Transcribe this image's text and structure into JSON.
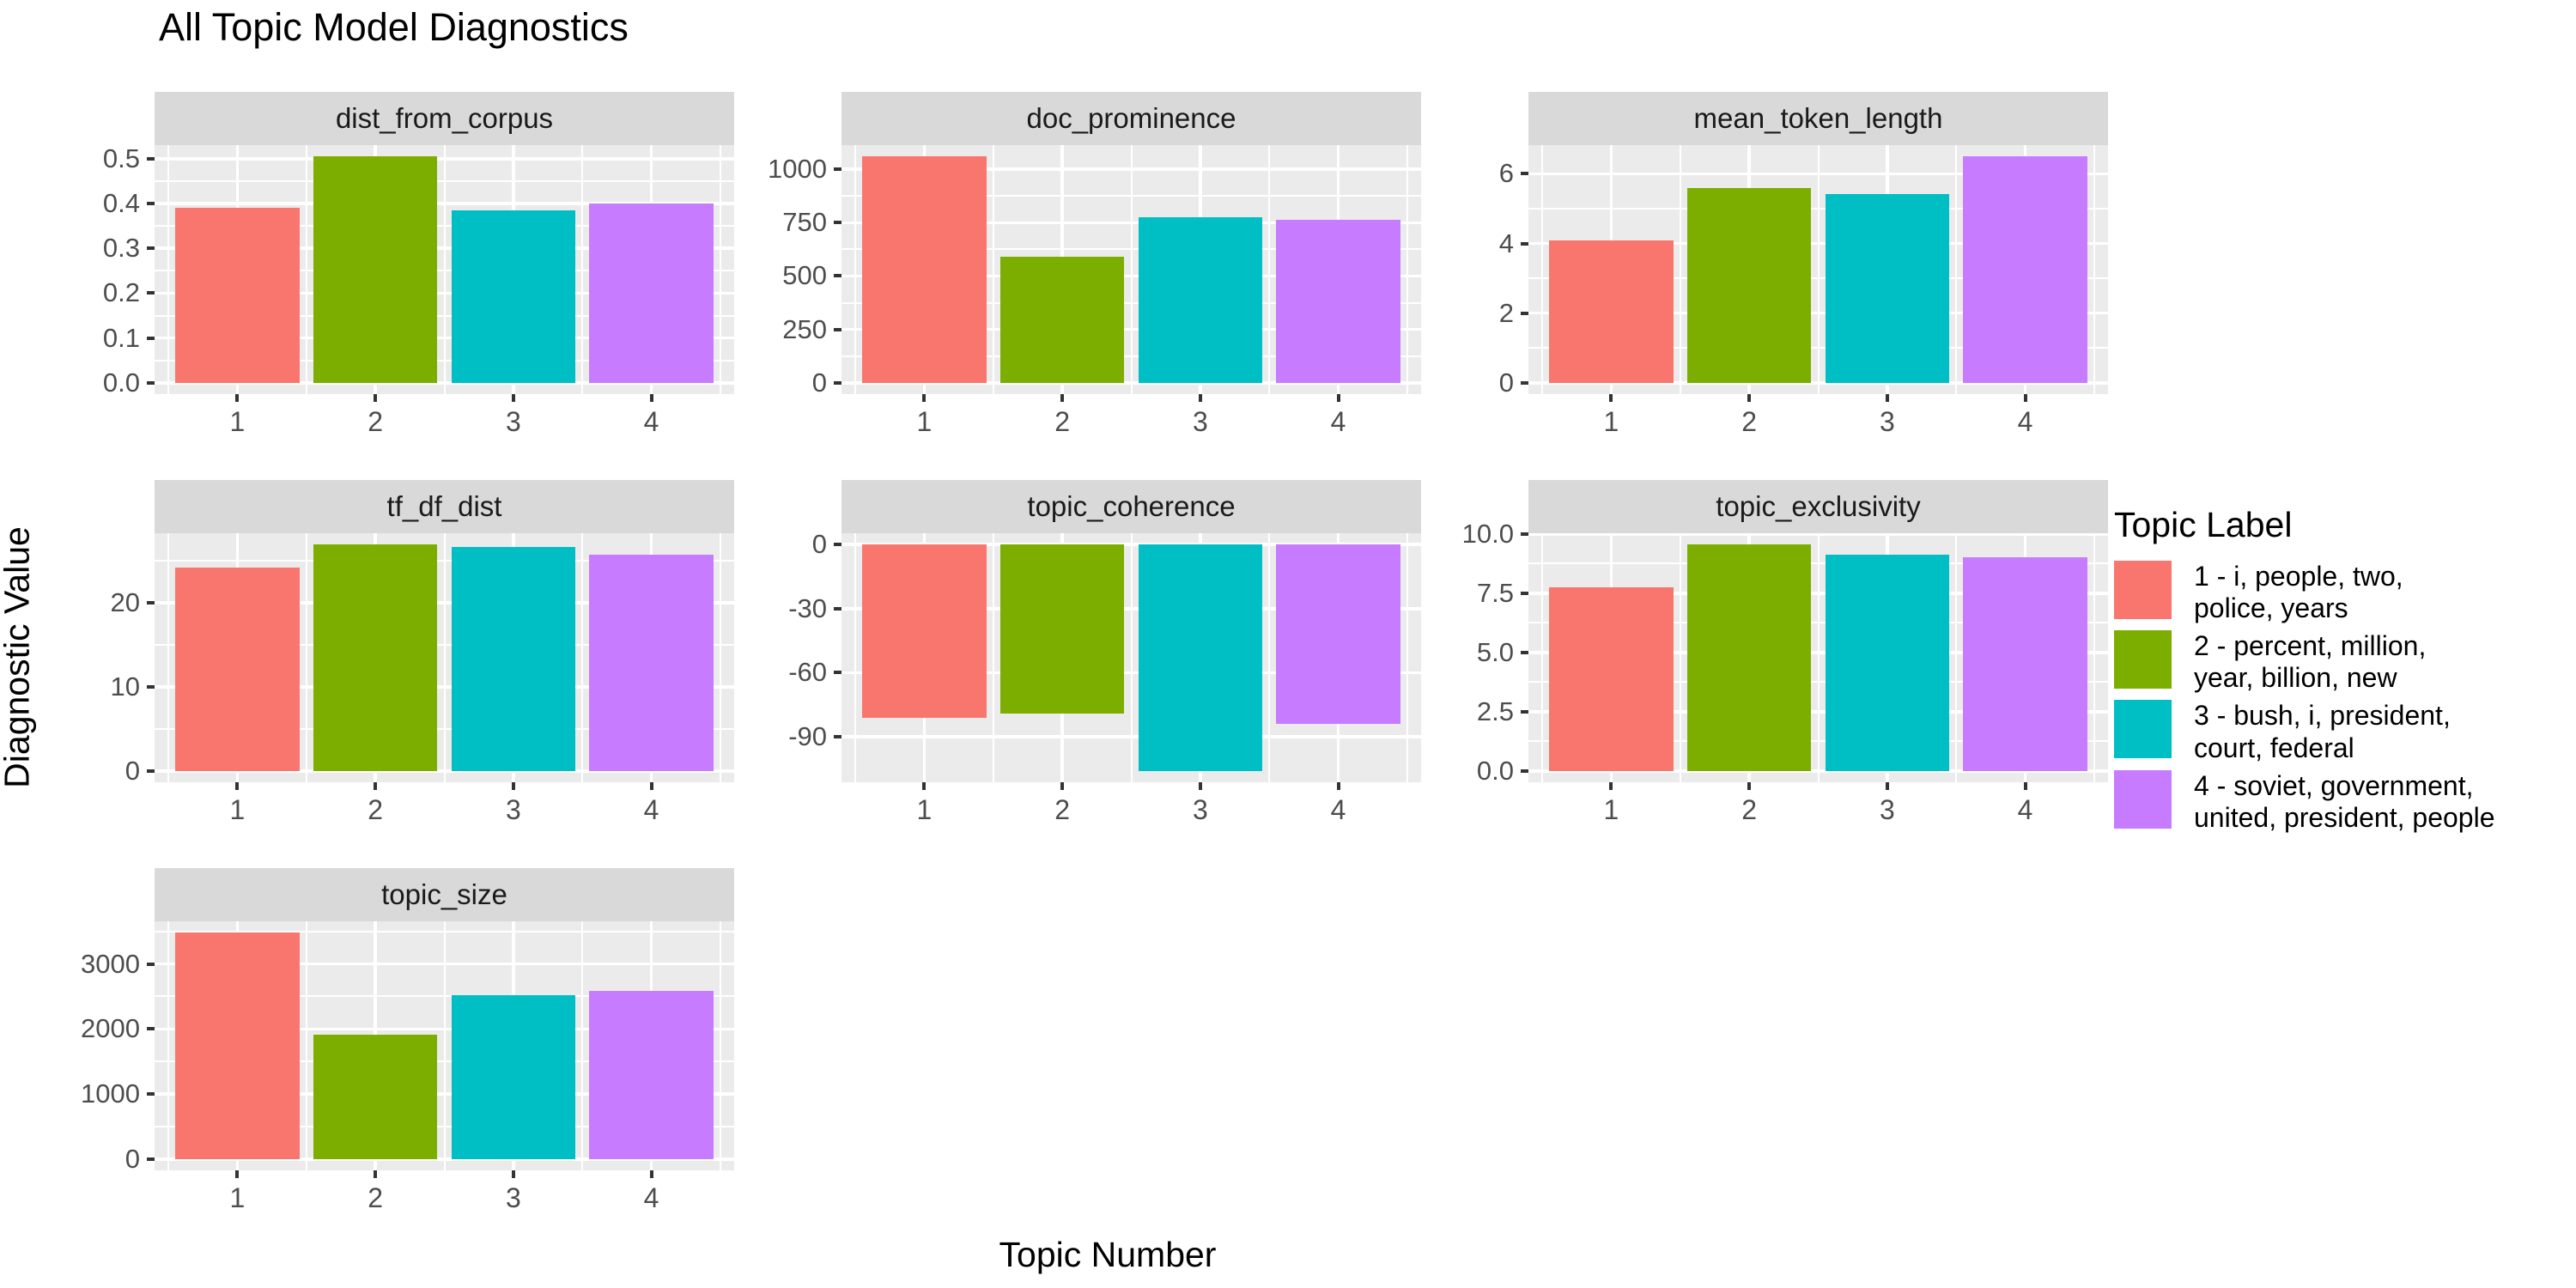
{
  "chart_data": {
    "type": "bar",
    "title": "All Topic Model Diagnostics",
    "xlabel": "Topic Number",
    "ylabel": "Diagnostic Value",
    "categories": [
      "1",
      "2",
      "3",
      "4"
    ],
    "grid": true,
    "bar_colors": [
      "#F8766D",
      "#7CAE00",
      "#00BFC4",
      "#C77CFF"
    ],
    "legend": {
      "position": "right",
      "title": "Topic Label",
      "entries": [
        {
          "label": "1 - i, people, two,\npolice, years",
          "color": "#F8766D"
        },
        {
          "label": "2 - percent, million,\nyear, billion, new",
          "color": "#7CAE00"
        },
        {
          "label": "3 - bush, i, president,\ncourt, federal",
          "color": "#00BFC4"
        },
        {
          "label": "4 - soviet, government,\nunited, president, people",
          "color": "#C77CFF"
        }
      ]
    },
    "facets": [
      {
        "name": "dist_from_corpus",
        "values": [
          0.39,
          0.505,
          0.385,
          0.4
        ],
        "ytick_labels": [
          "0.0",
          "0.1",
          "0.2",
          "0.3",
          "0.4",
          "0.5"
        ],
        "ytick_values": [
          0,
          0.1,
          0.2,
          0.3,
          0.4,
          0.5
        ]
      },
      {
        "name": "doc_prominence",
        "values": [
          1060,
          590,
          775,
          765
        ],
        "ytick_labels": [
          "0",
          "250",
          "500",
          "750",
          "1000"
        ],
        "ytick_values": [
          0,
          250,
          500,
          750,
          1000
        ]
      },
      {
        "name": "mean_token_length",
        "values": [
          4.1,
          5.58,
          5.41,
          6.5
        ],
        "ytick_labels": [
          "0",
          "2",
          "4",
          "6"
        ],
        "ytick_values": [
          0,
          2,
          4,
          6
        ]
      },
      {
        "name": "tf_df_dist",
        "values": [
          24.2,
          26.9,
          26.6,
          25.7
        ],
        "ytick_labels": [
          "0",
          "10",
          "20"
        ],
        "ytick_values": [
          0,
          10,
          20
        ]
      },
      {
        "name": "topic_coherence",
        "values": [
          -81,
          -79,
          -106,
          -84
        ],
        "ytick_labels": [
          "0",
          "-30",
          "-60",
          "-90"
        ],
        "ytick_values": [
          0,
          -30,
          -60,
          -90
        ]
      },
      {
        "name": "topic_exclusivity",
        "values": [
          7.76,
          9.55,
          9.14,
          9.02
        ],
        "ytick_labels": [
          "0.0",
          "2.5",
          "5.0",
          "7.5",
          "10.0"
        ],
        "ytick_values": [
          0,
          2.5,
          5,
          7.5,
          10
        ]
      },
      {
        "name": "topic_size",
        "values": [
          3480,
          1910,
          2520,
          2590
        ],
        "ytick_labels": [
          "0",
          "1000",
          "2000",
          "3000"
        ],
        "ytick_values": [
          0,
          1000,
          2000,
          3000
        ]
      }
    ],
    "style": {
      "panel_bg": "#EBEBEB",
      "strip_bg": "#D9D9D9",
      "grid_color": "#FFFFFF",
      "tick_text_color": "#4D4D4D"
    }
  }
}
